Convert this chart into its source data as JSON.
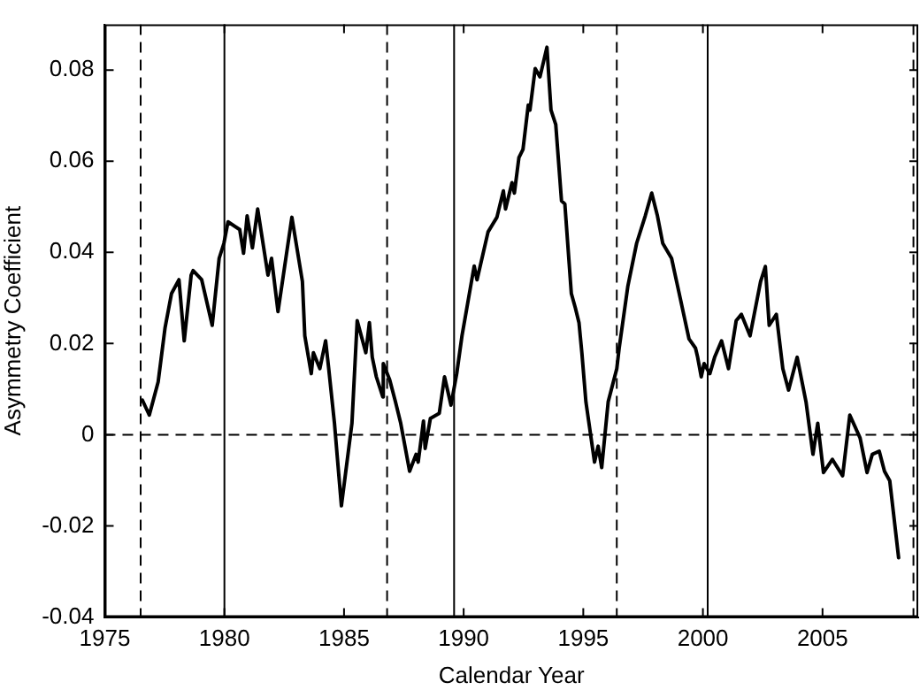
{
  "chart_data": {
    "type": "line",
    "xlabel": "Calendar Year",
    "ylabel": "Asymmetry Coefficient",
    "xlim": [
      1975,
      2009
    ],
    "xticks": [
      1975,
      1980,
      1985,
      1990,
      1995,
      2000,
      2005
    ],
    "ylim": [
      -0.04,
      0.09
    ],
    "yticks": [
      -0.04,
      -0.02,
      0,
      0.02,
      0.04,
      0.06,
      0.08
    ],
    "grid": false,
    "legend": false,
    "marker": "none",
    "line_style": "solid",
    "series": [
      {
        "color": "#000000",
        "x": [
          1976.57,
          1976.86,
          1977.23,
          1977.52,
          1977.79,
          1978.1,
          1978.32,
          1978.61,
          1978.69,
          1979.05,
          1979.49,
          1979.78,
          1979.98,
          1980.15,
          1980.64,
          1980.8,
          1980.95,
          1981.17,
          1981.39,
          1981.82,
          1981.97,
          1982.24,
          1982.82,
          1983.26,
          1983.36,
          1983.63,
          1983.72,
          1983.99,
          1984.23,
          1984.36,
          1984.6,
          1984.89,
          1985.33,
          1985.55,
          1985.91,
          1986.06,
          1986.18,
          1986.35,
          1986.62,
          1986.64,
          1986.91,
          1987.15,
          1987.37,
          1987.74,
          1988.01,
          1988.1,
          1988.32,
          1988.39,
          1988.61,
          1988.98,
          1989.2,
          1989.47,
          1989.71,
          1989.93,
          1990.44,
          1990.56,
          1991.02,
          1991.39,
          1991.66,
          1991.75,
          1992.02,
          1992.12,
          1992.31,
          1992.48,
          1992.7,
          1992.77,
          1992.99,
          1993.19,
          1993.48,
          1993.65,
          1993.85,
          1994.09,
          1994.23,
          1994.5,
          1994.67,
          1994.82,
          1994.94,
          1995.11,
          1995.47,
          1995.62,
          1995.77,
          1996.04,
          1996.4,
          1996.5,
          1996.86,
          1997.23,
          1997.59,
          1997.86,
          1998.1,
          1998.32,
          1998.69,
          1999.05,
          1999.42,
          1999.69,
          1999.78,
          1999.93,
          2000.05,
          2000.29,
          2000.49,
          2000.78,
          2001.07,
          2001.39,
          2001.61,
          2001.97,
          2002.41,
          2002.61,
          2002.77,
          2003.07,
          2003.34,
          2003.58,
          2003.94,
          2004.31,
          2004.6,
          2004.8,
          2005.04,
          2005.41,
          2005.84,
          2006.14,
          2006.57,
          2006.86,
          2007.08,
          2007.37,
          2007.59,
          2007.81,
          2008.18
        ],
        "values": [
          0.0076,
          0.0043,
          0.0116,
          0.0235,
          0.031,
          0.034,
          0.0206,
          0.035,
          0.036,
          0.034,
          0.024,
          0.0387,
          0.042,
          0.0467,
          0.045,
          0.0398,
          0.048,
          0.041,
          0.0495,
          0.035,
          0.0387,
          0.027,
          0.0477,
          0.0336,
          0.0217,
          0.0134,
          0.018,
          0.0145,
          0.0206,
          0.0145,
          0.0025,
          -0.0156,
          0.0025,
          0.025,
          0.018,
          0.0246,
          0.017,
          0.0127,
          0.0083,
          0.0156,
          0.012,
          0.0072,
          0.0025,
          -0.008,
          -0.0043,
          -0.006,
          0.003,
          -0.003,
          0.0036,
          0.0047,
          0.0127,
          0.0065,
          0.0134,
          0.0217,
          0.037,
          0.034,
          0.0445,
          0.0477,
          0.0535,
          0.0495,
          0.0553,
          0.053,
          0.0608,
          0.0626,
          0.0723,
          0.0712,
          0.0803,
          0.0785,
          0.085,
          0.0712,
          0.068,
          0.0513,
          0.0506,
          0.031,
          0.0278,
          0.0246,
          0.018,
          0.0072,
          -0.006,
          -0.0025,
          -0.0072,
          0.0072,
          0.0145,
          0.019,
          0.0325,
          0.042,
          0.048,
          0.053,
          0.048,
          0.042,
          0.0387,
          0.03,
          0.021,
          0.019,
          0.017,
          0.0127,
          0.0156,
          0.0134,
          0.017,
          0.0206,
          0.0145,
          0.025,
          0.0264,
          0.0217,
          0.0336,
          0.0369,
          0.024,
          0.0264,
          0.0145,
          0.0098,
          0.017,
          0.0072,
          -0.0043,
          0.0025,
          -0.0083,
          -0.0054,
          -0.009,
          0.0043,
          -0.0007,
          -0.0083,
          -0.0043,
          -0.0036,
          -0.008,
          -0.0101,
          -0.027
        ]
      }
    ],
    "ref_lines": [
      {
        "axis": "x",
        "value": 1976.5,
        "line_style": "dashed",
        "color": "#000000"
      },
      {
        "axis": "x",
        "value": 1980,
        "line_style": "solid",
        "color": "#000000"
      },
      {
        "axis": "x",
        "value": 1986.8,
        "line_style": "dashed",
        "color": "#000000"
      },
      {
        "axis": "x",
        "value": 1989.6,
        "line_style": "solid",
        "color": "#000000"
      },
      {
        "axis": "x",
        "value": 1996.4,
        "line_style": "dashed",
        "color": "#000000"
      },
      {
        "axis": "x",
        "value": 2000.2,
        "line_style": "solid",
        "color": "#000000"
      },
      {
        "axis": "x",
        "value": 2008.8,
        "line_style": "dashed",
        "color": "#000000"
      },
      {
        "axis": "y",
        "value": 0,
        "line_style": "dashed",
        "color": "#000000"
      }
    ]
  }
}
